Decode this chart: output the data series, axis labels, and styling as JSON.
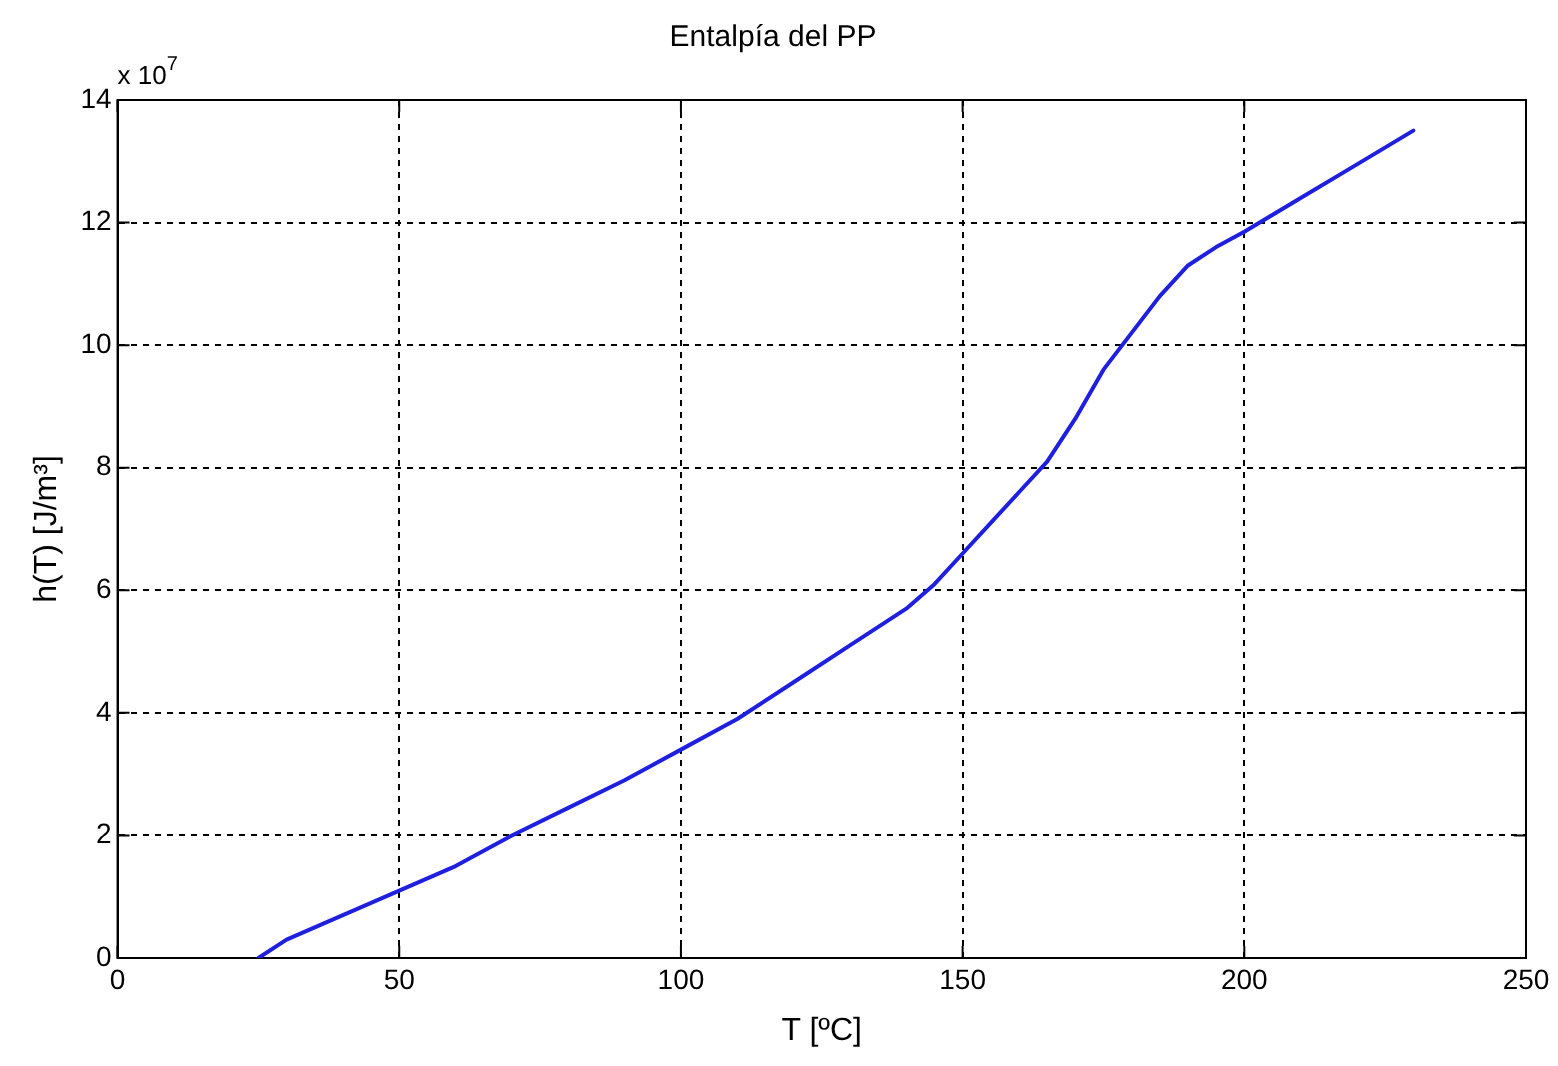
{
  "chart_data": {
    "type": "line",
    "title": "Entalpía del PP",
    "xlabel": "T [ºC]",
    "ylabel": "h(T) [J/m³]",
    "annotations": [
      "x 10$^{7}$"
    ],
    "series": [
      {
        "color": "#1f1fe0",
        "x": [
          25,
          30,
          40,
          50,
          60,
          70,
          80,
          90,
          100,
          110,
          120,
          130,
          140,
          145,
          150,
          155,
          160,
          165,
          170,
          175,
          180,
          185,
          190,
          195,
          200,
          210,
          220,
          230
        ],
        "values": [
          0,
          0.3,
          0.7,
          1.1,
          1.5,
          2.0,
          2.45,
          2.9,
          3.4,
          3.9,
          4.5,
          5.1,
          5.7,
          6.1,
          6.6,
          7.1,
          7.6,
          8.1,
          8.8,
          9.6,
          10.2,
          10.8,
          11.3,
          11.6,
          11.85,
          12.4,
          12.95,
          13.5
        ]
      }
    ],
    "xlim": [
      0,
      250
    ],
    "xticks": [
      0,
      50,
      100,
      150,
      200,
      250
    ],
    "ylim": [
      0,
      14
    ],
    "yticks": [
      0,
      2,
      4,
      6,
      8,
      10,
      12,
      14
    ],
    "grid": true,
    "legend": false,
    "marker": "none",
    "line_style": "solid"
  }
}
